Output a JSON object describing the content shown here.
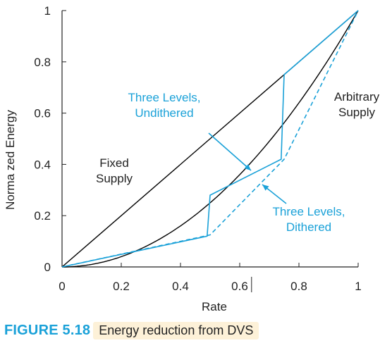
{
  "chart_data": {
    "type": "line",
    "xlabel": "Rate",
    "ylabel": "Norma zed Energy",
    "xlim": [
      0,
      1
    ],
    "ylim": [
      0,
      1
    ],
    "x_ticks": [
      "0",
      "0.2",
      "0.4",
      "0.6",
      "0.8",
      "1"
    ],
    "y_ticks": [
      "0",
      "0.2",
      "0.4",
      "0.6",
      "0.8",
      "1"
    ],
    "grid": false,
    "series": [
      {
        "name": "Fixed Supply",
        "color": "#000000",
        "style": "solid",
        "x": [
          0,
          1
        ],
        "y": [
          0,
          1
        ]
      },
      {
        "name": "Arbitrary Supply",
        "color": "#000000",
        "style": "solid",
        "x": [
          0,
          0.1,
          0.2,
          0.3,
          0.4,
          0.5,
          0.6,
          0.7,
          0.8,
          0.9,
          1.0
        ],
        "y": [
          0,
          0.01,
          0.04,
          0.09,
          0.16,
          0.25,
          0.36,
          0.49,
          0.64,
          0.81,
          1.0
        ]
      },
      {
        "name": "Three Levels, Undithered",
        "color": "#1aa1d8",
        "style": "solid",
        "x": [
          0,
          0.49,
          0.5,
          0.74,
          0.75,
          1.0
        ],
        "y": [
          0,
          0.12,
          0.28,
          0.42,
          0.75,
          1.0
        ]
      },
      {
        "name": "Three Levels, Dithered",
        "color": "#1aa1d8",
        "style": "dashed",
        "x": [
          0,
          0.5,
          0.75,
          1.0
        ],
        "y": [
          0,
          0.125,
          0.42,
          1.0
        ]
      }
    ],
    "annotations": {
      "fixed": [
        "Fixed",
        "Supply"
      ],
      "arbitrary": [
        "Arbitrary",
        "Supply"
      ],
      "undithered": [
        "Three Levels,",
        "Undithered"
      ],
      "dithered": [
        "Three Levels,",
        "Dithered"
      ]
    }
  },
  "caption": {
    "label": "FIGURE 5.18",
    "title": "Energy reduction from DVS"
  }
}
